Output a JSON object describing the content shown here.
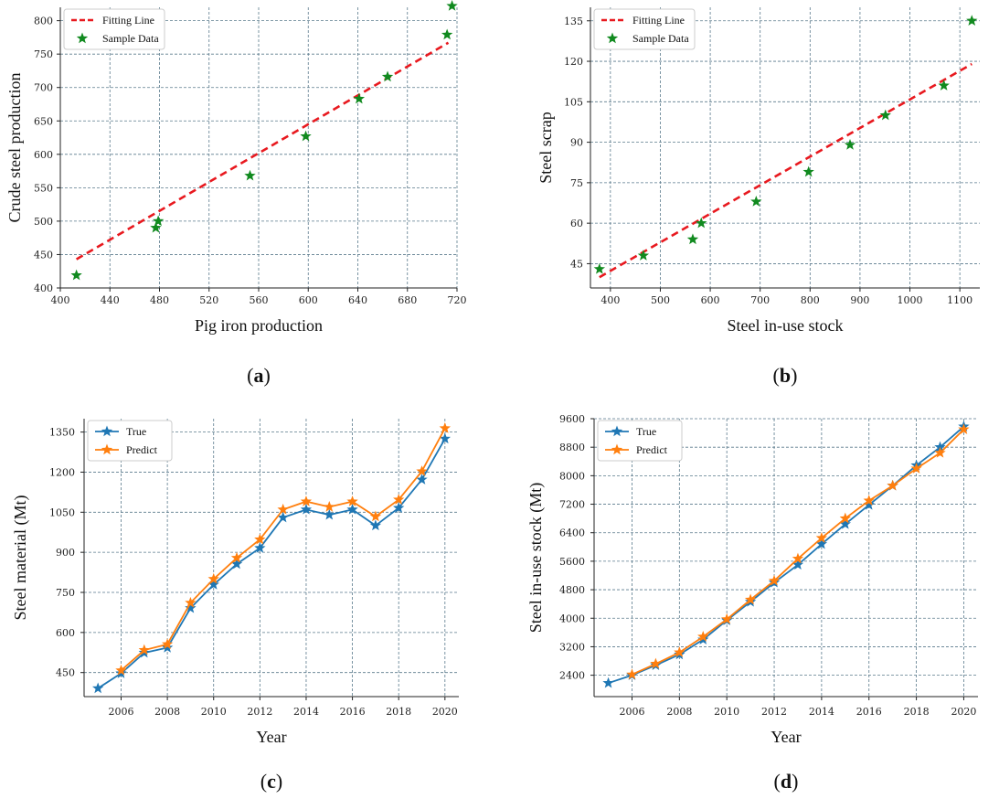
{
  "panels": [
    {
      "label_open": "(",
      "label_letter": "a",
      "label_close": ")",
      "chart_data": {
        "type": "scatter",
        "xlabel": "Pig iron production",
        "ylabel": "Crude steel production",
        "xlim": [
          400,
          720
        ],
        "ylim": [
          400,
          820
        ],
        "xticks": [
          400,
          440,
          480,
          520,
          560,
          600,
          640,
          680,
          720
        ],
        "yticks": [
          400,
          450,
          500,
          550,
          600,
          650,
          700,
          750,
          800
        ],
        "legend_position": "top-left",
        "fit_line": {
          "name": "Fitting Line",
          "color": "#e8191f",
          "x": [
            413,
            713
          ],
          "y": [
            443,
            767
          ]
        },
        "series": [
          {
            "name": "Sample Data",
            "color": "#118a1f",
            "x": [
              413,
              477,
              479,
              553,
              598,
              641,
              664,
              712,
              716
            ],
            "y": [
              419,
              490,
              500,
              568,
              627,
              683,
              716,
              779,
              822
            ]
          }
        ]
      }
    },
    {
      "label_open": "(",
      "label_letter": "b",
      "label_close": ")",
      "chart_data": {
        "type": "scatter",
        "xlabel": "Steel in-use stock",
        "ylabel": "Steel scrap",
        "xlim": [
          360,
          1140
        ],
        "ylim": [
          36,
          140
        ],
        "xticks": [
          400,
          500,
          600,
          700,
          800,
          900,
          1000,
          1100
        ],
        "yticks": [
          45,
          60,
          75,
          90,
          105,
          120,
          135
        ],
        "legend_position": "top-left",
        "fit_line": {
          "name": "Fitting Line",
          "color": "#e8191f",
          "x": [
            378,
            1124
          ],
          "y": [
            40,
            119
          ]
        },
        "series": [
          {
            "name": "Sample Data",
            "color": "#118a1f",
            "x": [
              378,
              466,
              565,
              582,
              692,
              797,
              880,
              951,
              1068,
              1124
            ],
            "y": [
              43,
              48,
              54,
              60,
              68,
              79,
              89,
              100,
              111,
              135
            ]
          }
        ]
      }
    },
    {
      "label_open": "(",
      "label_letter": "c",
      "label_close": ")",
      "chart_data": {
        "type": "line",
        "xlabel": "Year",
        "ylabel": "Steel material (Mt)",
        "xlim": [
          2004.4,
          2020.6
        ],
        "ylim": [
          360,
          1400
        ],
        "xticks": [
          2006,
          2008,
          2010,
          2012,
          2014,
          2016,
          2018,
          2020
        ],
        "yticks": [
          450,
          600,
          750,
          900,
          1050,
          1200,
          1350
        ],
        "legend_position": "top-left",
        "x": [
          2005,
          2006,
          2007,
          2008,
          2009,
          2010,
          2011,
          2012,
          2013,
          2014,
          2015,
          2016,
          2017,
          2018,
          2019,
          2020
        ],
        "series": [
          {
            "name": "True",
            "color": "#1f77b4",
            "values": [
              391,
              447,
              524,
              543,
              691,
              779,
              856,
              916,
              1030,
              1060,
              1040,
              1060,
              1000,
              1066,
              1172,
              1325
            ]
          },
          {
            "name": "Predict",
            "color": "#ff7f0e",
            "values": [
              null,
              458,
              534,
              556,
              711,
              800,
              879,
              948,
              1060,
              1090,
              1070,
              1090,
              1034,
              1097,
              1203,
              1364
            ]
          }
        ]
      }
    },
    {
      "label_open": "(",
      "label_letter": "d",
      "label_close": ")",
      "chart_data": {
        "type": "line",
        "xlabel": "Year",
        "ylabel": "Steel in-use stock (Mt)",
        "xlim": [
          2004.4,
          2020.6
        ],
        "ylim": [
          1800,
          9600
        ],
        "xticks": [
          2006,
          2008,
          2010,
          2012,
          2014,
          2016,
          2018,
          2020
        ],
        "yticks": [
          2400,
          3200,
          4000,
          4800,
          5600,
          6400,
          7200,
          8000,
          8800,
          9600
        ],
        "legend_position": "top-left",
        "x": [
          2005,
          2006,
          2007,
          2008,
          2009,
          2010,
          2011,
          2012,
          2013,
          2014,
          2015,
          2016,
          2017,
          2018,
          2019,
          2020
        ],
        "series": [
          {
            "name": "True",
            "color": "#1f77b4",
            "values": [
              2180,
              2400,
              2680,
              2980,
              3400,
              3940,
              4460,
              5000,
              5500,
              6080,
              6640,
              7180,
              7720,
              8290,
              8800,
              9380
            ]
          },
          {
            "name": "Predict",
            "color": "#ff7f0e",
            "values": [
              null,
              2420,
              2720,
              3040,
              3480,
              3970,
              4520,
              5050,
              5670,
              6250,
              6800,
              7300,
              7720,
              8200,
              8640,
              9300
            ]
          }
        ]
      }
    }
  ]
}
